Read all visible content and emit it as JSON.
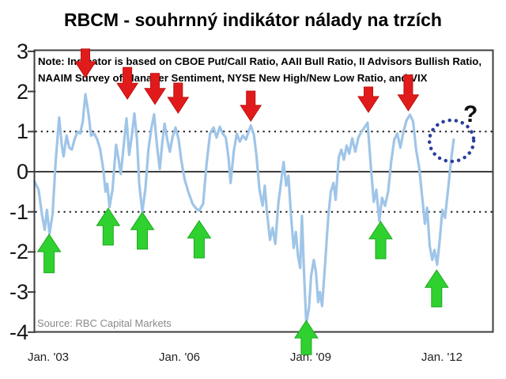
{
  "header": {
    "title": "RBCM - souhrnný indikátor nálady na trzích"
  },
  "chart_data": {
    "type": "line",
    "title": "RBCM - souhrnný indikátor nálady na trzích",
    "note_lines": [
      "Note: Indicator is based on CBOE Put/Call Ratio, AAII Bull Ratio, II Advisors Bullish Ratio,",
      "NAAIM Survey of Manager Sentiment, NYSE New High/New Low Ratio, and VIX"
    ],
    "source": "Source: RBC Capital Markets",
    "ylim": [
      -4,
      3
    ],
    "grid": "off",
    "yticks": [
      "3",
      "2",
      "1",
      "0",
      "-1",
      "-2",
      "-3",
      "-4"
    ],
    "xticks": [
      {
        "t": 2003,
        "label": "Jan. '03"
      },
      {
        "t": 2006,
        "label": "Jan. '06"
      },
      {
        "t": 2009,
        "label": "Jan. '09"
      },
      {
        "t": 2012,
        "label": "Jan. '12"
      }
    ],
    "reference_lines": {
      "zero": 0,
      "upper_dotted": 1,
      "lower_dotted": -1
    },
    "colors": {
      "line": "#9fc5e8",
      "sell_arrow": "#e11b1b",
      "sell_arrow_edge": "#bf0f0f",
      "buy_arrow": "#2fd12f",
      "buy_arrow_edge": "#1ea81e",
      "axis": "#3d3d3d",
      "dotted_ref": "#1a1a1a",
      "circle": "#2b3f9e"
    },
    "series": [
      {
        "name": "RBCM composite sentiment indicator",
        "points": [
          [
            2002.69,
            -0.25
          ],
          [
            2002.78,
            -0.45
          ],
          [
            2002.86,
            -1.1
          ],
          [
            2002.92,
            -1.45
          ],
          [
            2002.97,
            -0.95
          ],
          [
            2003.03,
            -1.55
          ],
          [
            2003.1,
            -1.05
          ],
          [
            2003.17,
            0.25
          ],
          [
            2003.25,
            1.35
          ],
          [
            2003.31,
            0.65
          ],
          [
            2003.35,
            0.38
          ],
          [
            2003.42,
            0.9
          ],
          [
            2003.48,
            0.6
          ],
          [
            2003.54,
            0.55
          ],
          [
            2003.6,
            0.8
          ],
          [
            2003.67,
            1.0
          ],
          [
            2003.73,
            0.95
          ],
          [
            2003.79,
            1.25
          ],
          [
            2003.85,
            1.93
          ],
          [
            2003.92,
            1.45
          ],
          [
            2003.98,
            0.9
          ],
          [
            2004.05,
            0.95
          ],
          [
            2004.12,
            0.8
          ],
          [
            2004.19,
            0.55
          ],
          [
            2004.26,
            0.05
          ],
          [
            2004.31,
            -0.5
          ],
          [
            2004.35,
            -0.3
          ],
          [
            2004.4,
            -0.88
          ],
          [
            2004.47,
            -0.45
          ],
          [
            2004.55,
            0.67
          ],
          [
            2004.61,
            0.3
          ],
          [
            2004.66,
            -0.06
          ],
          [
            2004.73,
            0.7
          ],
          [
            2004.79,
            1.33
          ],
          [
            2004.85,
            0.42
          ],
          [
            2004.91,
            0.9
          ],
          [
            2004.97,
            1.45
          ],
          [
            2005.03,
            0.8
          ],
          [
            2005.08,
            -0.3
          ],
          [
            2005.15,
            -1.0
          ],
          [
            2005.22,
            -0.45
          ],
          [
            2005.29,
            0.55
          ],
          [
            2005.36,
            1.1
          ],
          [
            2005.42,
            1.43
          ],
          [
            2005.49,
            0.6
          ],
          [
            2005.55,
            0.07
          ],
          [
            2005.61,
            0.75
          ],
          [
            2005.66,
            1.2
          ],
          [
            2005.72,
            0.8
          ],
          [
            2005.78,
            0.5
          ],
          [
            2005.84,
            0.85
          ],
          [
            2005.91,
            1.1
          ],
          [
            2005.98,
            0.8
          ],
          [
            2006.04,
            0.3
          ],
          [
            2006.12,
            -0.2
          ],
          [
            2006.2,
            -0.5
          ],
          [
            2006.3,
            -0.8
          ],
          [
            2006.38,
            -0.92
          ],
          [
            2006.45,
            -0.97
          ],
          [
            2006.54,
            -0.8
          ],
          [
            2006.62,
            0.2
          ],
          [
            2006.7,
            0.95
          ],
          [
            2006.78,
            1.1
          ],
          [
            2006.85,
            0.85
          ],
          [
            2006.92,
            1.12
          ],
          [
            2006.99,
            0.95
          ],
          [
            2007.06,
            0.85
          ],
          [
            2007.12,
            0.35
          ],
          [
            2007.17,
            -0.28
          ],
          [
            2007.24,
            0.5
          ],
          [
            2007.31,
            0.95
          ],
          [
            2007.38,
            0.75
          ],
          [
            2007.45,
            0.9
          ],
          [
            2007.52,
            0.8
          ],
          [
            2007.58,
            1.0
          ],
          [
            2007.63,
            1.15
          ],
          [
            2007.7,
            0.93
          ],
          [
            2007.76,
            0.4
          ],
          [
            2007.83,
            -0.45
          ],
          [
            2007.9,
            -0.85
          ],
          [
            2007.95,
            -0.35
          ],
          [
            2008.0,
            -1.0
          ],
          [
            2008.07,
            -1.7
          ],
          [
            2008.13,
            -1.4
          ],
          [
            2008.19,
            -1.8
          ],
          [
            2008.26,
            -0.8
          ],
          [
            2008.33,
            -0.2
          ],
          [
            2008.38,
            0.24
          ],
          [
            2008.44,
            -0.35
          ],
          [
            2008.49,
            -0.1
          ],
          [
            2008.55,
            -1.1
          ],
          [
            2008.61,
            -1.9
          ],
          [
            2008.66,
            -1.5
          ],
          [
            2008.71,
            -2.1
          ],
          [
            2008.76,
            -2.4
          ],
          [
            2008.8,
            -1.1
          ],
          [
            2008.85,
            -2.6
          ],
          [
            2008.9,
            -3.78
          ],
          [
            2008.96,
            -3.4
          ],
          [
            2009.01,
            -2.6
          ],
          [
            2009.07,
            -2.2
          ],
          [
            2009.12,
            -2.5
          ],
          [
            2009.17,
            -3.25
          ],
          [
            2009.21,
            -3.0
          ],
          [
            2009.26,
            -3.35
          ],
          [
            2009.33,
            -2.3
          ],
          [
            2009.4,
            -1.15
          ],
          [
            2009.46,
            -0.5
          ],
          [
            2009.52,
            -0.28
          ],
          [
            2009.57,
            -0.7
          ],
          [
            2009.64,
            0.35
          ],
          [
            2009.7,
            0.55
          ],
          [
            2009.76,
            0.3
          ],
          [
            2009.82,
            0.65
          ],
          [
            2009.88,
            0.45
          ],
          [
            2009.95,
            0.83
          ],
          [
            2010.02,
            0.5
          ],
          [
            2010.09,
            0.85
          ],
          [
            2010.16,
            1.0
          ],
          [
            2010.23,
            1.1
          ],
          [
            2010.3,
            1.22
          ],
          [
            2010.37,
            0.2
          ],
          [
            2010.44,
            -0.75
          ],
          [
            2010.5,
            -0.45
          ],
          [
            2010.57,
            -1.23
          ],
          [
            2010.63,
            -0.65
          ],
          [
            2010.7,
            -0.85
          ],
          [
            2010.77,
            -0.5
          ],
          [
            2010.84,
            0.25
          ],
          [
            2010.91,
            0.8
          ],
          [
            2010.98,
            0.95
          ],
          [
            2011.05,
            0.6
          ],
          [
            2011.12,
            1.0
          ],
          [
            2011.19,
            1.28
          ],
          [
            2011.27,
            1.42
          ],
          [
            2011.34,
            1.25
          ],
          [
            2011.41,
            0.55
          ],
          [
            2011.48,
            0.1
          ],
          [
            2011.55,
            -0.65
          ],
          [
            2011.61,
            -1.3
          ],
          [
            2011.66,
            -0.9
          ],
          [
            2011.72,
            -1.85
          ],
          [
            2011.78,
            -2.2
          ],
          [
            2011.83,
            -1.95
          ],
          [
            2011.89,
            -2.32
          ],
          [
            2011.95,
            -1.7
          ],
          [
            2012.01,
            -0.95
          ],
          [
            2012.07,
            -1.15
          ],
          [
            2012.14,
            -0.45
          ],
          [
            2012.21,
            0.3
          ],
          [
            2012.27,
            0.8
          ]
        ]
      }
    ],
    "signals": {
      "sell_arrows": [
        {
          "t": 2003.85,
          "tip": 2.35,
          "tail": 3.06
        },
        {
          "t": 2004.81,
          "tip": 1.81,
          "tail": 2.6
        },
        {
          "t": 2005.44,
          "tip": 1.68,
          "tail": 2.45
        },
        {
          "t": 2005.97,
          "tip": 1.46,
          "tail": 2.21
        },
        {
          "t": 2007.63,
          "tip": 1.26,
          "tail": 2.01
        },
        {
          "t": 2010.32,
          "tip": 1.48,
          "tail": 2.11
        },
        {
          "t": 2011.23,
          "tip": 1.52,
          "tail": 2.41
        }
      ],
      "buy_arrows": [
        {
          "t": 2003.02,
          "tip": -1.56,
          "tail": -2.52
        },
        {
          "t": 2004.37,
          "tip": -0.91,
          "tail": -1.83
        },
        {
          "t": 2005.15,
          "tip": -1.01,
          "tail": -1.93
        },
        {
          "t": 2006.45,
          "tip": -1.22,
          "tail": -2.15
        },
        {
          "t": 2008.9,
          "tip": -3.71,
          "tail": -4.56
        },
        {
          "t": 2010.6,
          "tip": -1.24,
          "tail": -2.17
        },
        {
          "t": 2011.88,
          "tip": -2.45,
          "tail": -3.37
        }
      ]
    },
    "annotation": {
      "question_label": "?",
      "circle": {
        "t": 2012.22,
        "v": 0.77
      }
    }
  }
}
